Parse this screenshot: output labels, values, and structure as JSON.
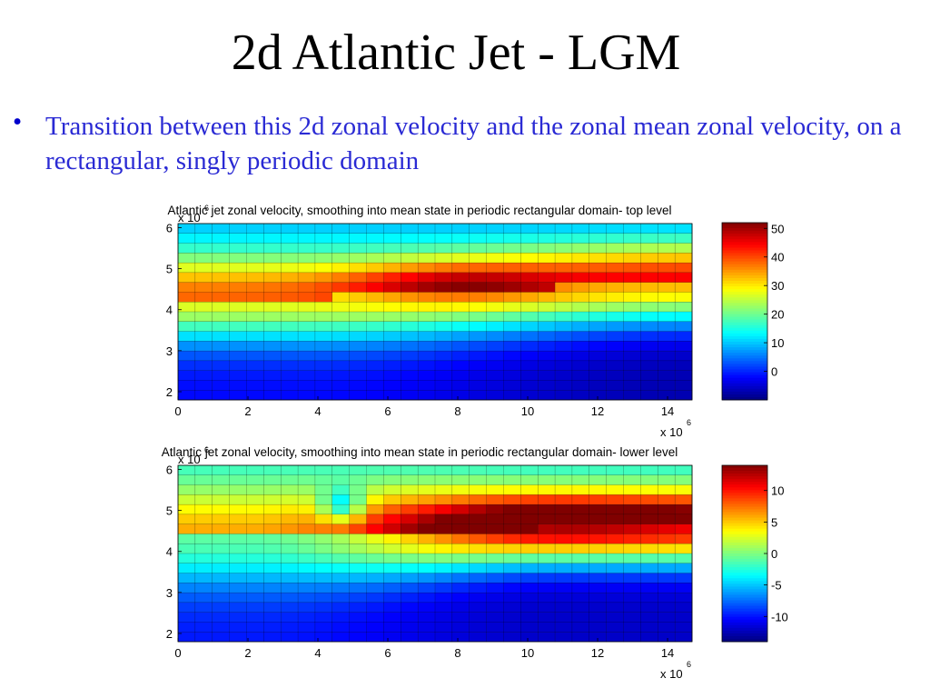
{
  "slide": {
    "title": "2d Atlantic Jet - LGM",
    "bullet_text": "Transition between this 2d zonal velocity and the zonal mean zonal velocity, on a rectangular, singly periodic domain"
  },
  "colormap": "jet",
  "chart_data": [
    {
      "type": "heatmap",
      "title": "Atlantic jet zonal velocity, smoothing into mean state in periodic rectangular domain- top level",
      "x_tick_labels": [
        "0",
        "2",
        "4",
        "6",
        "8",
        "10",
        "12",
        "14"
      ],
      "y_tick_labels": [
        "2",
        "3",
        "4",
        "5",
        "6"
      ],
      "x_multiplier": "x 10",
      "x_exponent": "6",
      "y_multiplier": "x 10",
      "y_exponent": "6",
      "xlim": [
        0,
        14.7
      ],
      "ylim": [
        1.8,
        6.1
      ],
      "grid": {
        "cols": 30,
        "rows": 18
      },
      "colorbar_ticks": [
        "0",
        "10",
        "20",
        "30",
        "40",
        "50"
      ],
      "clim": [
        -10,
        52
      ],
      "pattern": {
        "left": {
          "x": 3.5,
          "y0": 4.3,
          "sigma": 0.75,
          "amp": 30,
          "south_min": -2,
          "north_min": 8
        },
        "right": {
          "x": 14.7,
          "y0": 4.65,
          "sigma": 0.7,
          "amp": 40,
          "south_min": -7,
          "north_min": 5
        },
        "peak": {
          "x": 7.8,
          "y": 4.65,
          "sx": 2.2,
          "sy": 0.35,
          "amp": 12
        }
      }
    },
    {
      "type": "heatmap",
      "title": "Atlantic jet zonal velocity, smoothing into mean state in periodic rectangular domain- lower level",
      "x_tick_labels": [
        "0",
        "2",
        "4",
        "6",
        "8",
        "10",
        "12",
        "14"
      ],
      "y_tick_labels": [
        "2",
        "3",
        "4",
        "5",
        "6"
      ],
      "x_multiplier": "x 10",
      "x_exponent": "6",
      "y_multiplier": "x 10",
      "y_exponent": "6",
      "xlim": [
        0,
        14.7
      ],
      "ylim": [
        1.8,
        6.1
      ],
      "grid": {
        "cols": 30,
        "rows": 18
      },
      "colorbar_ticks": [
        "-10",
        "-5",
        "0",
        "5",
        "10"
      ],
      "clim": [
        -14,
        14
      ],
      "pattern": {
        "left": {
          "x": 2.0,
          "y0": 4.35,
          "sigma": 0.85,
          "amp": 9,
          "south_min": -10,
          "north_min": -3
        },
        "right": {
          "x": 11.0,
          "y0": 4.55,
          "sigma": 0.6,
          "amp": 22,
          "south_min": -12,
          "north_min": -3
        },
        "blob": {
          "x": 4.7,
          "y": 5.1,
          "sx": 0.45,
          "sy": 0.3,
          "amp": -8
        },
        "peak": {
          "x": 11.0,
          "y": 4.7,
          "sx": 2.3,
          "sy": 0.4,
          "amp": 3
        }
      }
    }
  ]
}
